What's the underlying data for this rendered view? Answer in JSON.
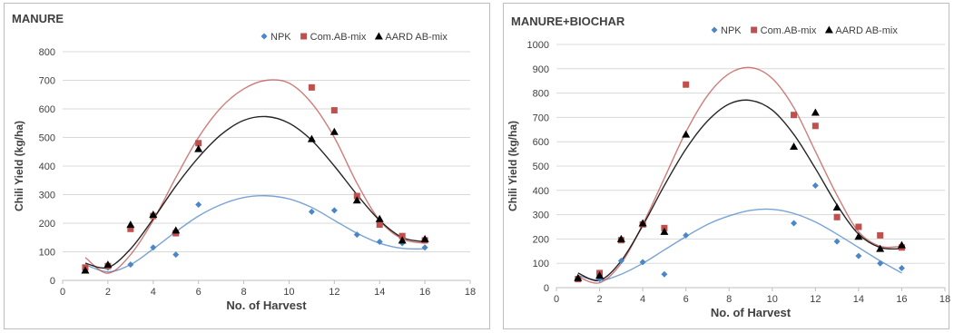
{
  "colors": {
    "NPK": "#4a86c8",
    "Com.AB-mix": "#c0504d",
    "AARD AB-mix": "#000000"
  },
  "chart_data": [
    {
      "type": "scatter",
      "title": "MANURE",
      "xlabel": "No. of Harvest",
      "ylabel": "Chili Yield (kg/ha)",
      "xlim": [
        0,
        18
      ],
      "ylim": [
        0,
        800
      ],
      "xticks": [
        "0",
        "2",
        "4",
        "6",
        "8",
        "10",
        "12",
        "14",
        "16",
        "18"
      ],
      "yticks": [
        "0",
        "100",
        "200",
        "300",
        "400",
        "500",
        "600",
        "700",
        "800"
      ],
      "grid": true,
      "legend_position": "top-right",
      "legend": [
        "NPK",
        "Com.AB-mix",
        "AARD AB-mix"
      ],
      "series": [
        {
          "name": "NPK",
          "marker": "diamond",
          "color": "#4a86c8",
          "points": [
            [
              1,
              40
            ],
            [
              2,
              45
            ],
            [
              3,
              55
            ],
            [
              4,
              115
            ],
            [
              5,
              90
            ],
            [
              6,
              265
            ],
            [
              11,
              240
            ],
            [
              12,
              245
            ],
            [
              13,
              160
            ],
            [
              14,
              135
            ],
            [
              15,
              130
            ],
            [
              16,
              115
            ]
          ],
          "trend": [
            [
              1,
              55
            ],
            [
              2,
              30
            ],
            [
              3,
              55
            ],
            [
              4,
              110
            ],
            [
              5,
              170
            ],
            [
              6,
              225
            ],
            [
              7,
              265
            ],
            [
              8,
              290
            ],
            [
              9,
              296
            ],
            [
              10,
              285
            ],
            [
              11,
              255
            ],
            [
              12,
              210
            ],
            [
              13,
              165
            ],
            [
              14,
              130
            ],
            [
              15,
              112
            ],
            [
              16,
              110
            ]
          ]
        },
        {
          "name": "Com.AB-mix",
          "marker": "square",
          "color": "#c0504d",
          "points": [
            [
              1,
              45
            ],
            [
              2,
              50
            ],
            [
              3,
              180
            ],
            [
              4,
              225
            ],
            [
              5,
              165
            ],
            [
              6,
              480
            ],
            [
              11,
              675
            ],
            [
              12,
              595
            ],
            [
              13,
              295
            ],
            [
              14,
              195
            ],
            [
              15,
              155
            ],
            [
              16,
              140
            ]
          ],
          "trend": [
            [
              1,
              80
            ],
            [
              2,
              25
            ],
            [
              3,
              90
            ],
            [
              4,
              210
            ],
            [
              5,
              360
            ],
            [
              6,
              500
            ],
            [
              7,
              605
            ],
            [
              8,
              670
            ],
            [
              9,
              700
            ],
            [
              10,
              690
            ],
            [
              11,
              620
            ],
            [
              12,
              500
            ],
            [
              13,
              340
            ],
            [
              14,
              210
            ],
            [
              15,
              145
            ],
            [
              16,
              130
            ]
          ]
        },
        {
          "name": "AARD AB-mix",
          "marker": "triangle",
          "color": "#000000",
          "points": [
            [
              1,
              35
            ],
            [
              2,
              55
            ],
            [
              3,
              195
            ],
            [
              4,
              230
            ],
            [
              5,
              175
            ],
            [
              6,
              460
            ],
            [
              11,
              495
            ],
            [
              12,
              520
            ],
            [
              13,
              280
            ],
            [
              14,
              215
            ],
            [
              15,
              140
            ],
            [
              16,
              145
            ]
          ],
          "trend": [
            [
              1,
              60
            ],
            [
              2,
              45
            ],
            [
              3,
              110
            ],
            [
              4,
              215
            ],
            [
              5,
              330
            ],
            [
              6,
              430
            ],
            [
              7,
              510
            ],
            [
              8,
              560
            ],
            [
              9,
              573
            ],
            [
              10,
              550
            ],
            [
              11,
              490
            ],
            [
              12,
              400
            ],
            [
              13,
              300
            ],
            [
              14,
              210
            ],
            [
              15,
              150
            ],
            [
              16,
              135
            ]
          ]
        }
      ]
    },
    {
      "type": "scatter",
      "title": "MANURE+BIOCHAR",
      "xlabel": "No. of Harvest",
      "ylabel": "Chili Yield (kg/ha)",
      "xlim": [
        0,
        18
      ],
      "ylim": [
        0,
        1000
      ],
      "xticks": [
        "0",
        "2",
        "4",
        "6",
        "8",
        "10",
        "12",
        "14",
        "16",
        "18"
      ],
      "yticks": [
        "0",
        "100",
        "200",
        "300",
        "400",
        "500",
        "600",
        "700",
        "800",
        "900",
        "1000"
      ],
      "grid": true,
      "legend_position": "top-right",
      "legend": [
        "NPK",
        "Com.AB-mix",
        "AARD AB-mix"
      ],
      "series": [
        {
          "name": "NPK",
          "marker": "diamond",
          "color": "#4a86c8",
          "points": [
            [
              1,
              35
            ],
            [
              2,
              35
            ],
            [
              3,
              110
            ],
            [
              4,
              105
            ],
            [
              5,
              55
            ],
            [
              6,
              215
            ],
            [
              11,
              265
            ],
            [
              12,
              420
            ],
            [
              13,
              190
            ],
            [
              14,
              130
            ],
            [
              15,
              100
            ],
            [
              16,
              80
            ]
          ],
          "trend": [
            [
              1,
              50
            ],
            [
              2,
              30
            ],
            [
              3,
              55
            ],
            [
              4,
              100
            ],
            [
              5,
              155
            ],
            [
              6,
              210
            ],
            [
              7,
              260
            ],
            [
              8,
              295
            ],
            [
              9,
              318
            ],
            [
              10,
              322
            ],
            [
              11,
              305
            ],
            [
              12,
              270
            ],
            [
              13,
              220
            ],
            [
              14,
              165
            ],
            [
              15,
              110
            ],
            [
              16,
              60
            ]
          ]
        },
        {
          "name": "Com.AB-mix",
          "marker": "square",
          "color": "#c0504d",
          "points": [
            [
              1,
              35
            ],
            [
              2,
              60
            ],
            [
              3,
              195
            ],
            [
              4,
              260
            ],
            [
              5,
              245
            ],
            [
              6,
              835
            ],
            [
              11,
              710
            ],
            [
              12,
              665
            ],
            [
              13,
              290
            ],
            [
              14,
              250
            ],
            [
              15,
              215
            ],
            [
              16,
              165
            ]
          ],
          "trend": [
            [
              1,
              45
            ],
            [
              2,
              20
            ],
            [
              3,
              100
            ],
            [
              4,
              260
            ],
            [
              5,
              450
            ],
            [
              6,
              640
            ],
            [
              7,
              790
            ],
            [
              8,
              880
            ],
            [
              9,
              905
            ],
            [
              10,
              860
            ],
            [
              11,
              740
            ],
            [
              12,
              560
            ],
            [
              13,
              380
            ],
            [
              14,
              230
            ],
            [
              15,
              170
            ],
            [
              16,
              170
            ]
          ]
        },
        {
          "name": "AARD AB-mix",
          "marker": "triangle",
          "color": "#000000",
          "points": [
            [
              1,
              40
            ],
            [
              2,
              50
            ],
            [
              3,
              200
            ],
            [
              4,
              265
            ],
            [
              5,
              230
            ],
            [
              6,
              630
            ],
            [
              11,
              580
            ],
            [
              12,
              720
            ],
            [
              13,
              330
            ],
            [
              14,
              210
            ],
            [
              15,
              160
            ],
            [
              16,
              175
            ]
          ],
          "trend": [
            [
              1,
              60
            ],
            [
              2,
              30
            ],
            [
              3,
              110
            ],
            [
              4,
              255
            ],
            [
              5,
              420
            ],
            [
              6,
              570
            ],
            [
              7,
              685
            ],
            [
              8,
              755
            ],
            [
              9,
              770
            ],
            [
              10,
              730
            ],
            [
              11,
              630
            ],
            [
              12,
              490
            ],
            [
              13,
              340
            ],
            [
              14,
              220
            ],
            [
              15,
              165
            ],
            [
              16,
              160
            ]
          ]
        }
      ]
    }
  ]
}
